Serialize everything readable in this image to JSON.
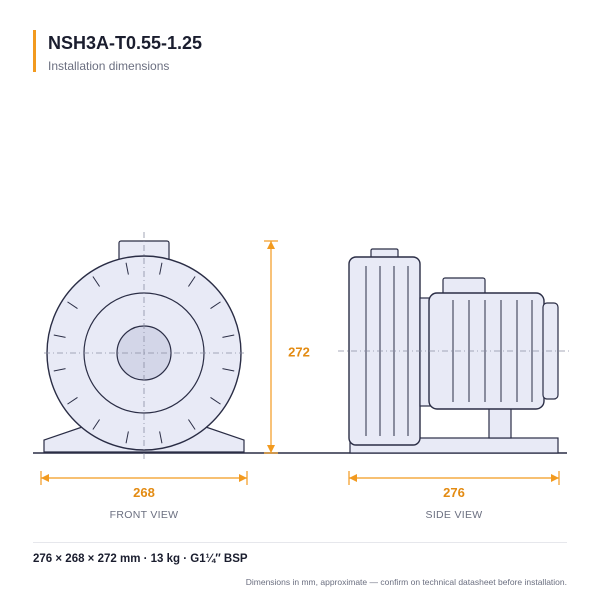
{
  "header": {
    "title": "NSH3A-T0.55-1.25",
    "subtitle": "Installation dimensions"
  },
  "dimensions": {
    "front_width": "268",
    "height": "272",
    "side_length": "276"
  },
  "views": {
    "front": "FRONT VIEW",
    "side": "SIDE VIEW"
  },
  "footer": {
    "spec": "276 × 268 × 272 mm  ·  13 kg  ·  G1¼″ BSP",
    "note": "Dimensions in mm, approximate — confirm on technical datasheet before installation."
  },
  "colors": {
    "accent": "#f29a1f",
    "body_fill": "#e8eaf6",
    "line": "#2a2d45"
  }
}
